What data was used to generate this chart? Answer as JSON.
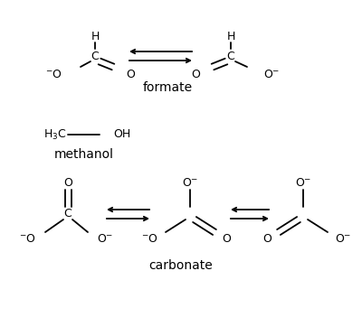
{
  "background_color": "#ffffff",
  "figsize": [
    4.0,
    3.62
  ],
  "dpi": 100,
  "labels": {
    "formate": "formate",
    "methanol": "methanol",
    "carbonate": "carbonate"
  },
  "font_size": 9,
  "label_font_size": 10,
  "lw": 1.3
}
